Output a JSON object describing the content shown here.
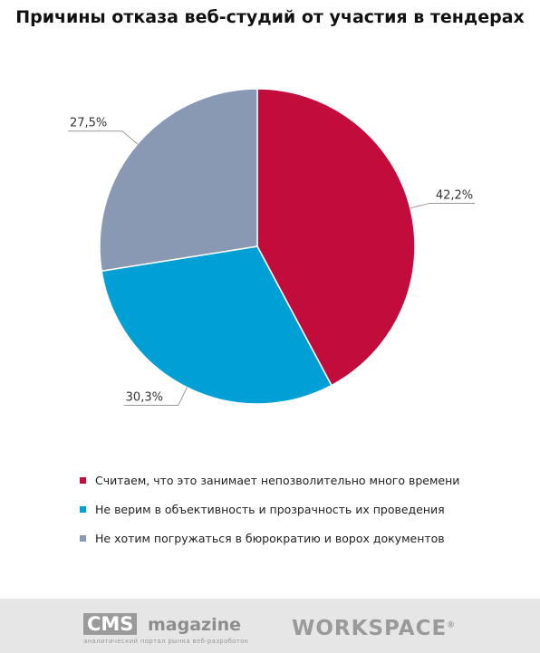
{
  "chart_data": {
    "type": "pie",
    "title": "Причины отказа веб-студий от участия в тендерах",
    "slices": [
      {
        "label": "Считаем, что это занимает непозволительно много времени",
        "value": 42.2,
        "value_label": "42,2%",
        "color": "#c20d3c"
      },
      {
        "label": "Не верим в объективность и прозрачность их проведения",
        "value": 30.3,
        "value_label": "30,3%",
        "color": "#00a0d6"
      },
      {
        "label": "Не хотим погружаться в бюрократию и ворох документов",
        "value": 27.5,
        "value_label": "27,5%",
        "color": "#8a99b3"
      }
    ],
    "legend_position": "bottom"
  },
  "footer": {
    "cms_logo_word": "CMS",
    "cms_logo_rest": "magazine",
    "cms_subtitle": "аналитический портал рынка веб-разработок",
    "workspace_logo": "WORKSPACE",
    "workspace_mark": "®"
  }
}
